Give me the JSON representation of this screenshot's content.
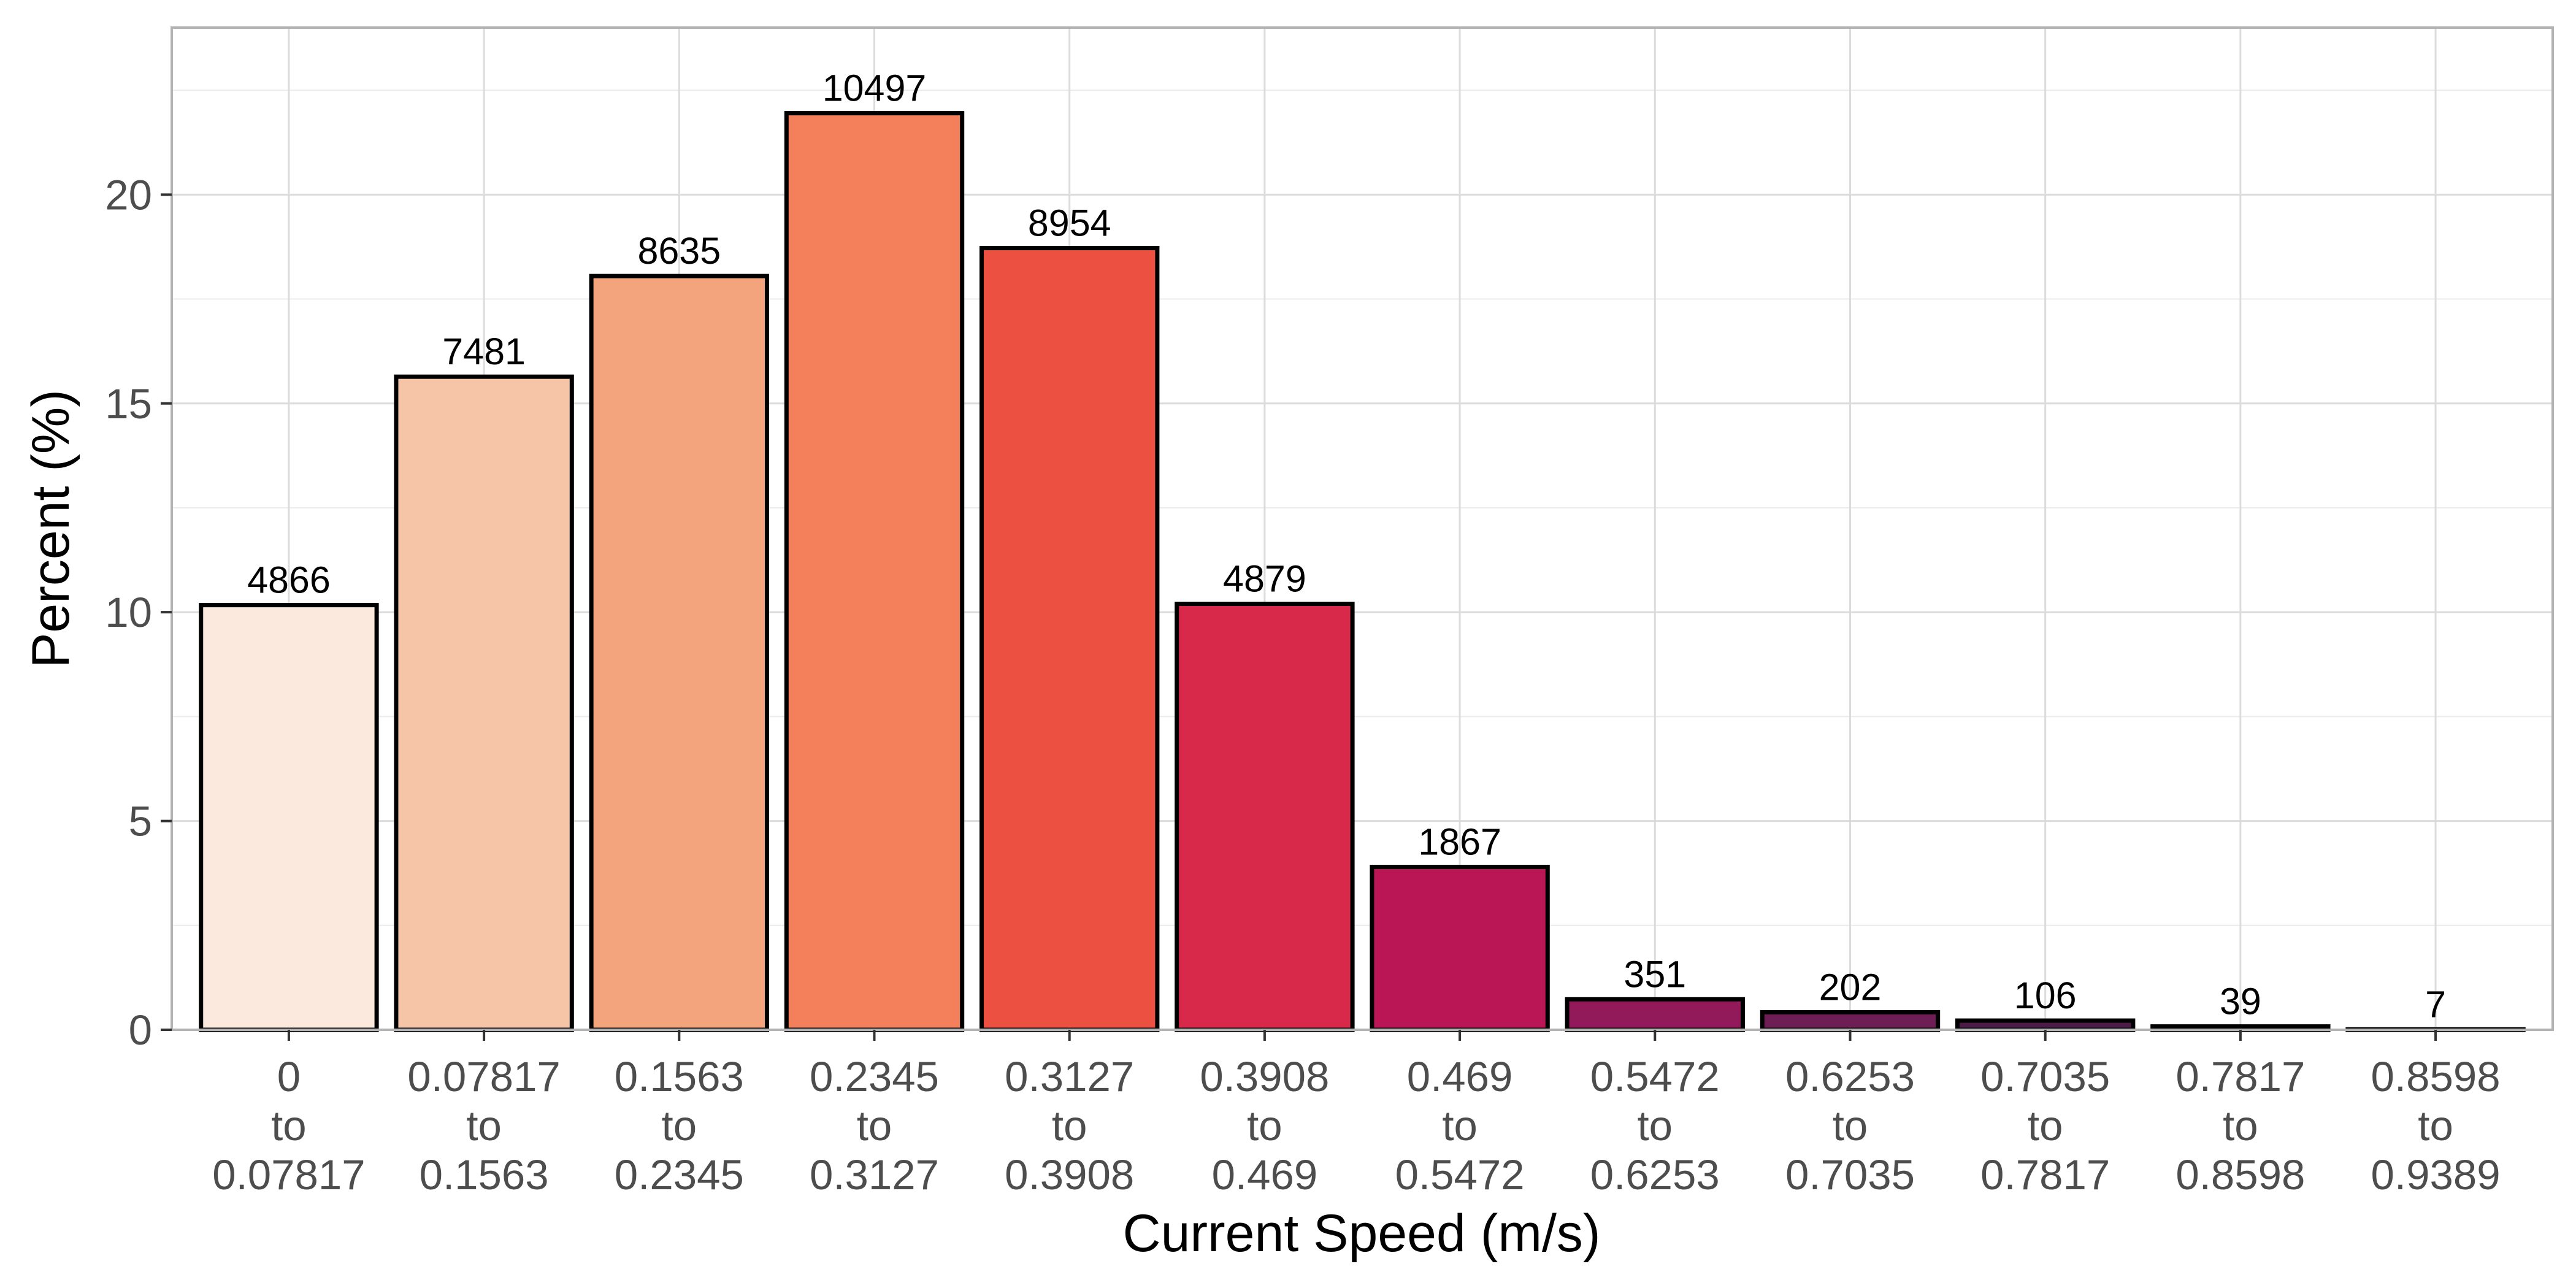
{
  "chart_data": {
    "type": "bar",
    "title": "",
    "xlabel": "Current Speed (m/s)",
    "ylabel": "Percent (%)",
    "ylim": [
      0,
      24
    ],
    "yticks": [
      0,
      5,
      10,
      15,
      20
    ],
    "grid": true,
    "categories": [
      "0 to 0.07817",
      "0.07817 to 0.1563",
      "0.1563 to 0.2345",
      "0.2345 to 0.3127",
      "0.3127 to 0.3908",
      "0.3908 to 0.469",
      "0.469 to 0.5472",
      "0.5472 to 0.6253",
      "0.6253 to 0.7035",
      "0.7035 to 0.7817",
      "0.7817 to 0.8598",
      "0.8598 to 0.9389"
    ],
    "category_lines": [
      [
        "0",
        "to",
        "0.07817"
      ],
      [
        "0.07817",
        "to",
        "0.1563"
      ],
      [
        "0.1563",
        "to",
        "0.2345"
      ],
      [
        "0.2345",
        "to",
        "0.3127"
      ],
      [
        "0.3127",
        "to",
        "0.3908"
      ],
      [
        "0.3908",
        "to",
        "0.469"
      ],
      [
        "0.469",
        "to",
        "0.5472"
      ],
      [
        "0.5472",
        "to",
        "0.6253"
      ],
      [
        "0.6253",
        "to",
        "0.7035"
      ],
      [
        "0.7035",
        "to",
        "0.7817"
      ],
      [
        "0.7817",
        "to",
        "0.8598"
      ],
      [
        "0.8598",
        "to",
        "0.9389"
      ]
    ],
    "values": [
      10.17,
      15.64,
      18.05,
      21.95,
      18.72,
      10.2,
      3.9,
      0.73,
      0.42,
      0.22,
      0.08,
      0.01
    ],
    "counts": [
      "4866",
      "7481",
      "8635",
      "10497",
      "8954",
      "4879",
      "1867",
      "351",
      "202",
      "106",
      "39",
      "7"
    ],
    "colors": [
      "#FAE9DC",
      "#F6C5A8",
      "#F4A47D",
      "#F37F5B",
      "#EB5040",
      "#D8294A",
      "#BA1656",
      "#921A5A",
      "#6D1E55",
      "#4B1C47",
      "#2F1736",
      "#1A1024"
    ]
  }
}
